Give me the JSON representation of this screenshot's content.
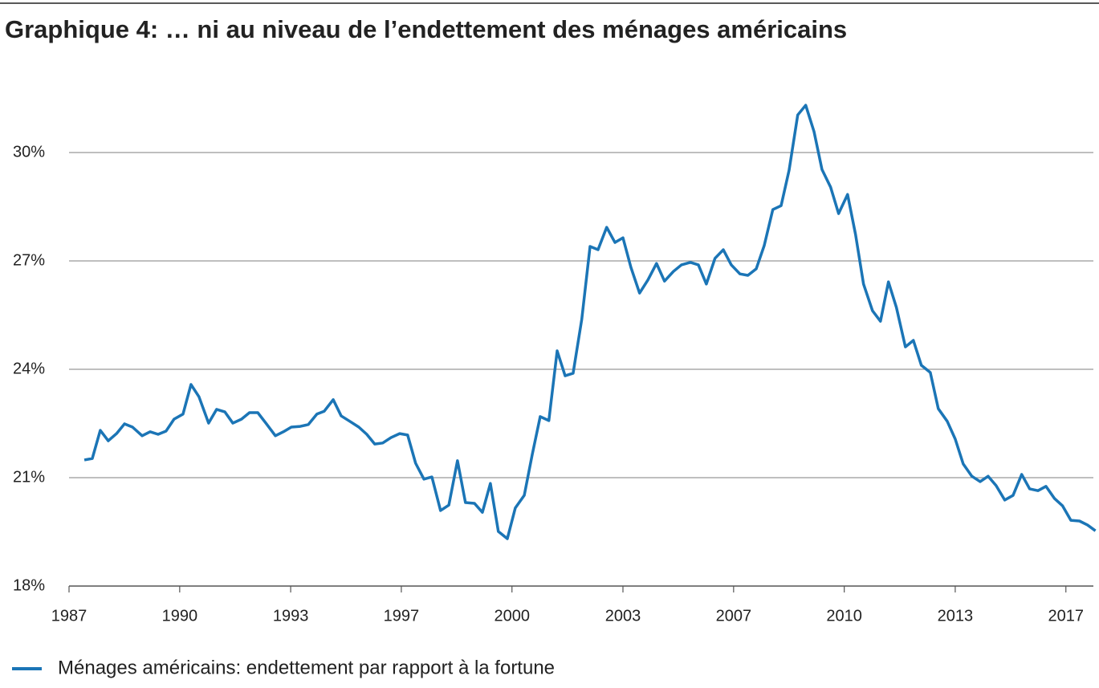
{
  "chart_data": {
    "type": "line",
    "title": "Graphique 4: … ni au niveau de l’endettement des ménages américains",
    "x": [
      1987.46,
      1987.7,
      1987.94,
      1988.18,
      1988.43,
      1988.67,
      1988.91,
      1989.2,
      1989.44,
      1989.68,
      1989.92,
      1990.16,
      1990.43,
      1990.67,
      1990.91,
      1991.2,
      1991.44,
      1991.69,
      1991.93,
      1992.19,
      1992.43,
      1992.68,
      1992.94,
      1993.21,
      1993.45,
      1993.69,
      1993.96,
      1994.2,
      1994.46,
      1994.68,
      1994.95,
      1995.19,
      1995.45,
      1995.72,
      1995.96,
      1996.2,
      1996.44,
      1996.69,
      1996.95,
      1997.19,
      1997.43,
      1997.68,
      1997.92,
      1998.18,
      1998.43,
      1998.69,
      1998.93,
      1999.2,
      1999.44,
      1999.68,
      1999.92,
      2000.19,
      2000.43,
      2000.7,
      2000.94,
      2001.18,
      2001.44,
      2001.69,
      2001.93,
      2002.17,
      2002.43,
      2002.68,
      2002.92,
      2003.18,
      2003.43,
      2003.67,
      2003.91,
      2004.17,
      2004.42,
      2004.68,
      2004.92,
      2005.19,
      2005.43,
      2005.7,
      2005.94,
      2006.18,
      2006.44,
      2006.69,
      2006.93,
      2007.19,
      2007.43,
      2007.68,
      2007.92,
      2008.18,
      2008.43,
      2008.67,
      2008.93,
      2009.17,
      2009.42,
      2009.66,
      2009.92,
      2010.16,
      2010.43,
      2010.67,
      2010.91,
      2011.18,
      2011.42,
      2011.66,
      2011.9,
      2012.17,
      2012.41,
      2012.65,
      2012.92,
      2013.16,
      2013.43,
      2013.67,
      2013.91,
      2014.17,
      2014.42,
      2014.66,
      2014.9,
      2015.16,
      2015.41,
      2015.67,
      2015.91,
      2016.16,
      2016.4,
      2016.66,
      2016.9,
      2017.15,
      2017.41,
      2017.65,
      2017.89
    ],
    "series": [
      {
        "name": "Ménages américains: endettement par rapport à la fortune",
        "color": "#1b75b6",
        "values": [
          21.49,
          21.53,
          22.31,
          22.02,
          22.22,
          22.49,
          22.4,
          22.16,
          22.27,
          22.2,
          22.29,
          22.62,
          22.76,
          23.58,
          23.24,
          22.51,
          22.89,
          22.82,
          22.51,
          22.62,
          22.8,
          22.8,
          22.49,
          22.16,
          22.27,
          22.4,
          22.42,
          22.47,
          22.76,
          22.84,
          23.16,
          22.71,
          22.56,
          22.4,
          22.2,
          21.93,
          21.96,
          22.11,
          22.22,
          22.18,
          21.4,
          20.96,
          21.02,
          20.09,
          20.24,
          21.47,
          20.31,
          20.29,
          20.04,
          20.84,
          19.51,
          19.31,
          20.16,
          20.51,
          21.64,
          22.69,
          22.58,
          24.51,
          23.82,
          23.89,
          25.38,
          27.4,
          27.31,
          27.93,
          27.51,
          27.64,
          26.82,
          26.11,
          26.47,
          26.93,
          26.44,
          26.71,
          26.89,
          26.96,
          26.89,
          26.36,
          27.07,
          27.31,
          26.89,
          26.64,
          26.6,
          26.78,
          27.42,
          28.42,
          28.53,
          29.51,
          31.04,
          31.31,
          30.58,
          29.53,
          29.04,
          28.31,
          28.84,
          27.73,
          26.36,
          25.62,
          25.33,
          26.42,
          25.71,
          24.62,
          24.8,
          24.11,
          23.91,
          22.91,
          22.56,
          22.07,
          21.38,
          21.04,
          20.89,
          21.04,
          20.78,
          20.38,
          20.51,
          21.09,
          20.69,
          20.64,
          20.76,
          20.42,
          20.22,
          19.82,
          19.8,
          19.69,
          19.53
        ]
      }
    ],
    "xlim": [
      1987,
      2017.9
    ],
    "xticks": [
      1987,
      {
        "value": 1990.33,
        "label": "1990"
      },
      {
        "value": 1993.67,
        "label": "1993"
      },
      1997,
      {
        "value": 2000.33,
        "label": "2000"
      },
      {
        "value": 2003.67,
        "label": "2003"
      },
      2007,
      {
        "value": 2010.33,
        "label": "2010"
      },
      {
        "value": 2013.67,
        "label": "2013"
      },
      2017
    ],
    "ylim": [
      18,
      33.3
    ],
    "yticks": [
      {
        "value": 18,
        "label": "18%"
      },
      {
        "value": 21,
        "label": "21%"
      },
      {
        "value": 24,
        "label": "24%"
      },
      {
        "value": 27,
        "label": "27%"
      },
      {
        "value": 30,
        "label": "30%"
      }
    ],
    "grid": true
  }
}
